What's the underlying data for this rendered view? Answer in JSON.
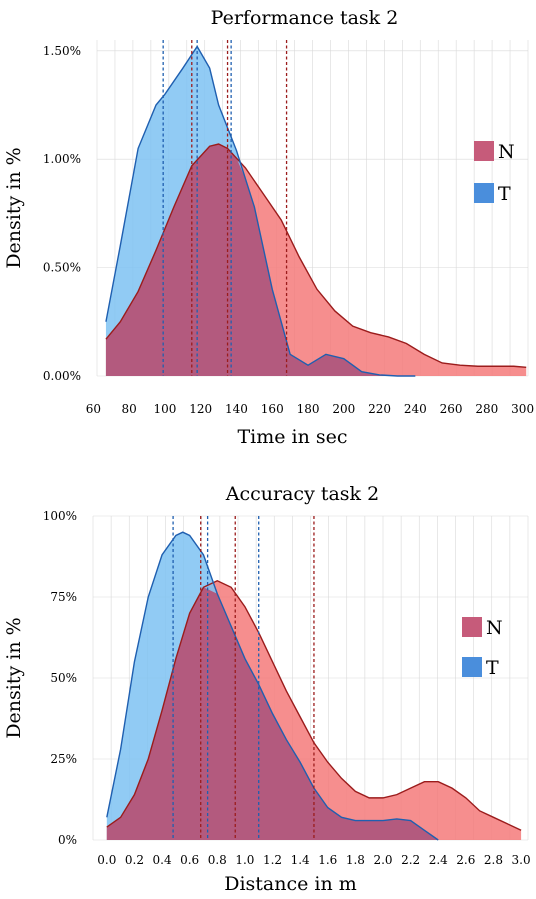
{
  "colors": {
    "N_fill": "#f47a7a",
    "N_line": "#9b1c1c",
    "T_fill": "#7ec2f2",
    "T_line": "#1f5fb0",
    "overlap": "#b55478",
    "N_swatch": "#c65b7a",
    "T_swatch": "#4a8edc",
    "grid": "#d9d9d9"
  },
  "chart_data": [
    {
      "type": "area",
      "title": "Performance task 2",
      "xlabel": "Time in sec",
      "ylabel": "Density in %",
      "xlim": [
        62,
        303
      ],
      "ylim": [
        0,
        1.55
      ],
      "xticks": [
        60,
        80,
        100,
        120,
        140,
        160,
        180,
        200,
        220,
        240,
        260,
        280,
        300
      ],
      "yticks": [
        0,
        0.5,
        1.0,
        1.5
      ],
      "ytick_labels": [
        "0.00%",
        "0.50%",
        "1.00%",
        "1.50%"
      ],
      "legend_position": "right",
      "legend": [
        "N",
        "T"
      ],
      "series": [
        {
          "name": "N",
          "x": [
            67,
            75,
            85,
            95,
            105,
            115,
            125,
            130,
            135,
            145,
            155,
            165,
            175,
            185,
            195,
            205,
            215,
            225,
            235,
            245,
            255,
            265,
            275,
            285,
            295,
            302
          ],
          "y": [
            0.17,
            0.25,
            0.39,
            0.58,
            0.78,
            0.97,
            1.06,
            1.07,
            1.05,
            0.96,
            0.84,
            0.72,
            0.55,
            0.4,
            0.3,
            0.23,
            0.2,
            0.18,
            0.15,
            0.1,
            0.06,
            0.05,
            0.045,
            0.045,
            0.045,
            0.04
          ],
          "vlines": [
            115,
            135,
            168
          ]
        },
        {
          "name": "T",
          "x": [
            67,
            75,
            85,
            95,
            100,
            110,
            118,
            125,
            130,
            140,
            150,
            160,
            170,
            180,
            190,
            200,
            210,
            220,
            230,
            240
          ],
          "y": [
            0.25,
            0.6,
            1.05,
            1.25,
            1.3,
            1.42,
            1.52,
            1.42,
            1.25,
            1.04,
            0.78,
            0.4,
            0.1,
            0.05,
            0.1,
            0.08,
            0.02,
            0.005,
            0.0,
            0.0
          ],
          "vlines": [
            99,
            118,
            137
          ]
        }
      ]
    },
    {
      "type": "area",
      "title": "Accuracy task 2",
      "xlabel": "Distance in m",
      "ylabel": "Density in %",
      "xlim": [
        -0.1,
        3.05
      ],
      "ylim": [
        0,
        1.0
      ],
      "xticks": [
        0.0,
        0.2,
        0.4,
        0.6,
        0.8,
        1.0,
        1.2,
        1.4,
        1.6,
        1.8,
        2.0,
        2.2,
        2.4,
        2.6,
        2.8,
        3.0
      ],
      "xtick_labels": [
        "0.0",
        "0.2",
        "0.4",
        "0.6",
        "0.8",
        "1.0",
        "1.2",
        "1.4",
        "1.6",
        "1.8",
        "2.0",
        "2.2",
        "2.4",
        "2.6",
        "2.8",
        "3.0"
      ],
      "yticks": [
        0,
        0.25,
        0.5,
        0.75,
        1.0
      ],
      "ytick_labels": [
        "0%",
        "25%",
        "50%",
        "75%",
        "100%"
      ],
      "legend_position": "right",
      "legend": [
        "N",
        "T"
      ],
      "series": [
        {
          "name": "N",
          "x": [
            0.0,
            0.1,
            0.2,
            0.3,
            0.4,
            0.5,
            0.6,
            0.7,
            0.8,
            0.9,
            1.0,
            1.1,
            1.2,
            1.3,
            1.4,
            1.5,
            1.6,
            1.7,
            1.8,
            1.9,
            2.0,
            2.1,
            2.2,
            2.3,
            2.4,
            2.5,
            2.6,
            2.7,
            2.8,
            2.9,
            3.0
          ],
          "y": [
            0.04,
            0.07,
            0.14,
            0.25,
            0.4,
            0.56,
            0.7,
            0.78,
            0.8,
            0.78,
            0.72,
            0.64,
            0.55,
            0.46,
            0.38,
            0.3,
            0.24,
            0.19,
            0.15,
            0.13,
            0.13,
            0.14,
            0.16,
            0.18,
            0.18,
            0.16,
            0.13,
            0.09,
            0.07,
            0.05,
            0.03
          ],
          "vlines": [
            0.68,
            0.93,
            1.5
          ]
        },
        {
          "name": "T",
          "x": [
            0.0,
            0.1,
            0.2,
            0.3,
            0.4,
            0.5,
            0.55,
            0.6,
            0.7,
            0.8,
            0.9,
            1.0,
            1.1,
            1.2,
            1.3,
            1.4,
            1.5,
            1.6,
            1.7,
            1.8,
            1.9,
            2.0,
            2.1,
            2.2,
            2.3,
            2.4
          ],
          "y": [
            0.07,
            0.28,
            0.55,
            0.75,
            0.88,
            0.94,
            0.95,
            0.94,
            0.88,
            0.76,
            0.66,
            0.56,
            0.48,
            0.39,
            0.31,
            0.24,
            0.16,
            0.1,
            0.07,
            0.06,
            0.06,
            0.06,
            0.065,
            0.06,
            0.03,
            0.0
          ],
          "vlines": [
            0.48,
            0.73,
            1.1
          ]
        }
      ]
    }
  ]
}
